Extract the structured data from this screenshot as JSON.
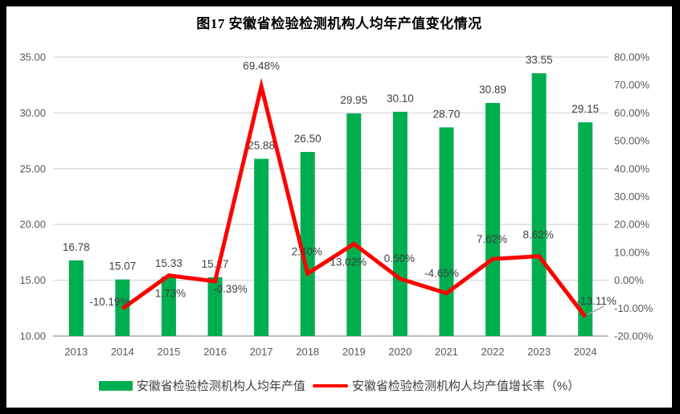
{
  "title": "图17 安徽省检验检测机构人均年产值变化情况",
  "colors": {
    "bar": "#00AE50",
    "line": "#FF0000",
    "grid": "#DDDDDD",
    "axis_line": "#BFBFBF",
    "axis_text": "#595959",
    "label_text": "#404040",
    "leader_line": "#A6A6A6",
    "frame": "#000000",
    "background": "#FFFFFF"
  },
  "legend": [
    {
      "label": "安徽省检验检测机构人均年产值",
      "type": "bar"
    },
    {
      "label": "安徽省检验检测机构人均产值增长率（%）",
      "type": "line"
    }
  ],
  "chart_data": {
    "type": "combo_bar_line",
    "title": "图17 安徽省检验检测机构人均年产值变化情况",
    "categories": [
      "2013",
      "2014",
      "2015",
      "2016",
      "2017",
      "2018",
      "2019",
      "2020",
      "2021",
      "2022",
      "2023",
      "2024"
    ],
    "series": [
      {
        "name": "安徽省检验检测机构人均年产值",
        "type": "bar",
        "axis": "left",
        "values": [
          16.78,
          15.07,
          15.33,
          15.27,
          25.88,
          26.5,
          29.95,
          30.1,
          28.7,
          30.89,
          33.55,
          29.15
        ],
        "labels": [
          "16.78",
          "15.07",
          "15.33",
          "15.27",
          "25.88",
          "26.50",
          "29.95",
          "30.10",
          "28.70",
          "30.89",
          "33.55",
          "29.15"
        ]
      },
      {
        "name": "安徽省检验检测机构人均产值增长率（%）",
        "type": "line",
        "axis": "right",
        "values": [
          null,
          -10.19,
          1.73,
          -0.39,
          69.48,
          2.4,
          13.02,
          0.5,
          -4.65,
          7.62,
          8.62,
          -13.11
        ],
        "labels": [
          null,
          "-10.19%",
          "1.73%",
          "-0.39%",
          "69.48%",
          "2.40%",
          "13.02%",
          "0.50%",
          "-4.65%",
          "7.62%",
          "8.62%",
          "-13.11%"
        ]
      }
    ],
    "left_axis": {
      "min": 10,
      "max": 35,
      "step": 5,
      "tick_values": [
        35,
        30,
        25,
        20,
        15,
        10
      ],
      "tick_labels": [
        "35.00",
        "30.00",
        "25.00",
        "20.00",
        "15.00",
        "10.00"
      ]
    },
    "right_axis": {
      "min": -20,
      "max": 80,
      "step": 10,
      "tick_values": [
        80,
        70,
        60,
        50,
        40,
        30,
        20,
        10,
        0,
        -10,
        -20
      ],
      "tick_labels": [
        "80.00%",
        "70.00%",
        "60.00%",
        "50.00%",
        "40.00%",
        "30.00%",
        "20.00%",
        "10.00%",
        "0.00%",
        "-10.00%",
        "-20.00%"
      ]
    },
    "grid": "horizontal gridlines at every 5 units (left) / 20% (right)",
    "legend_position": "bottom"
  }
}
